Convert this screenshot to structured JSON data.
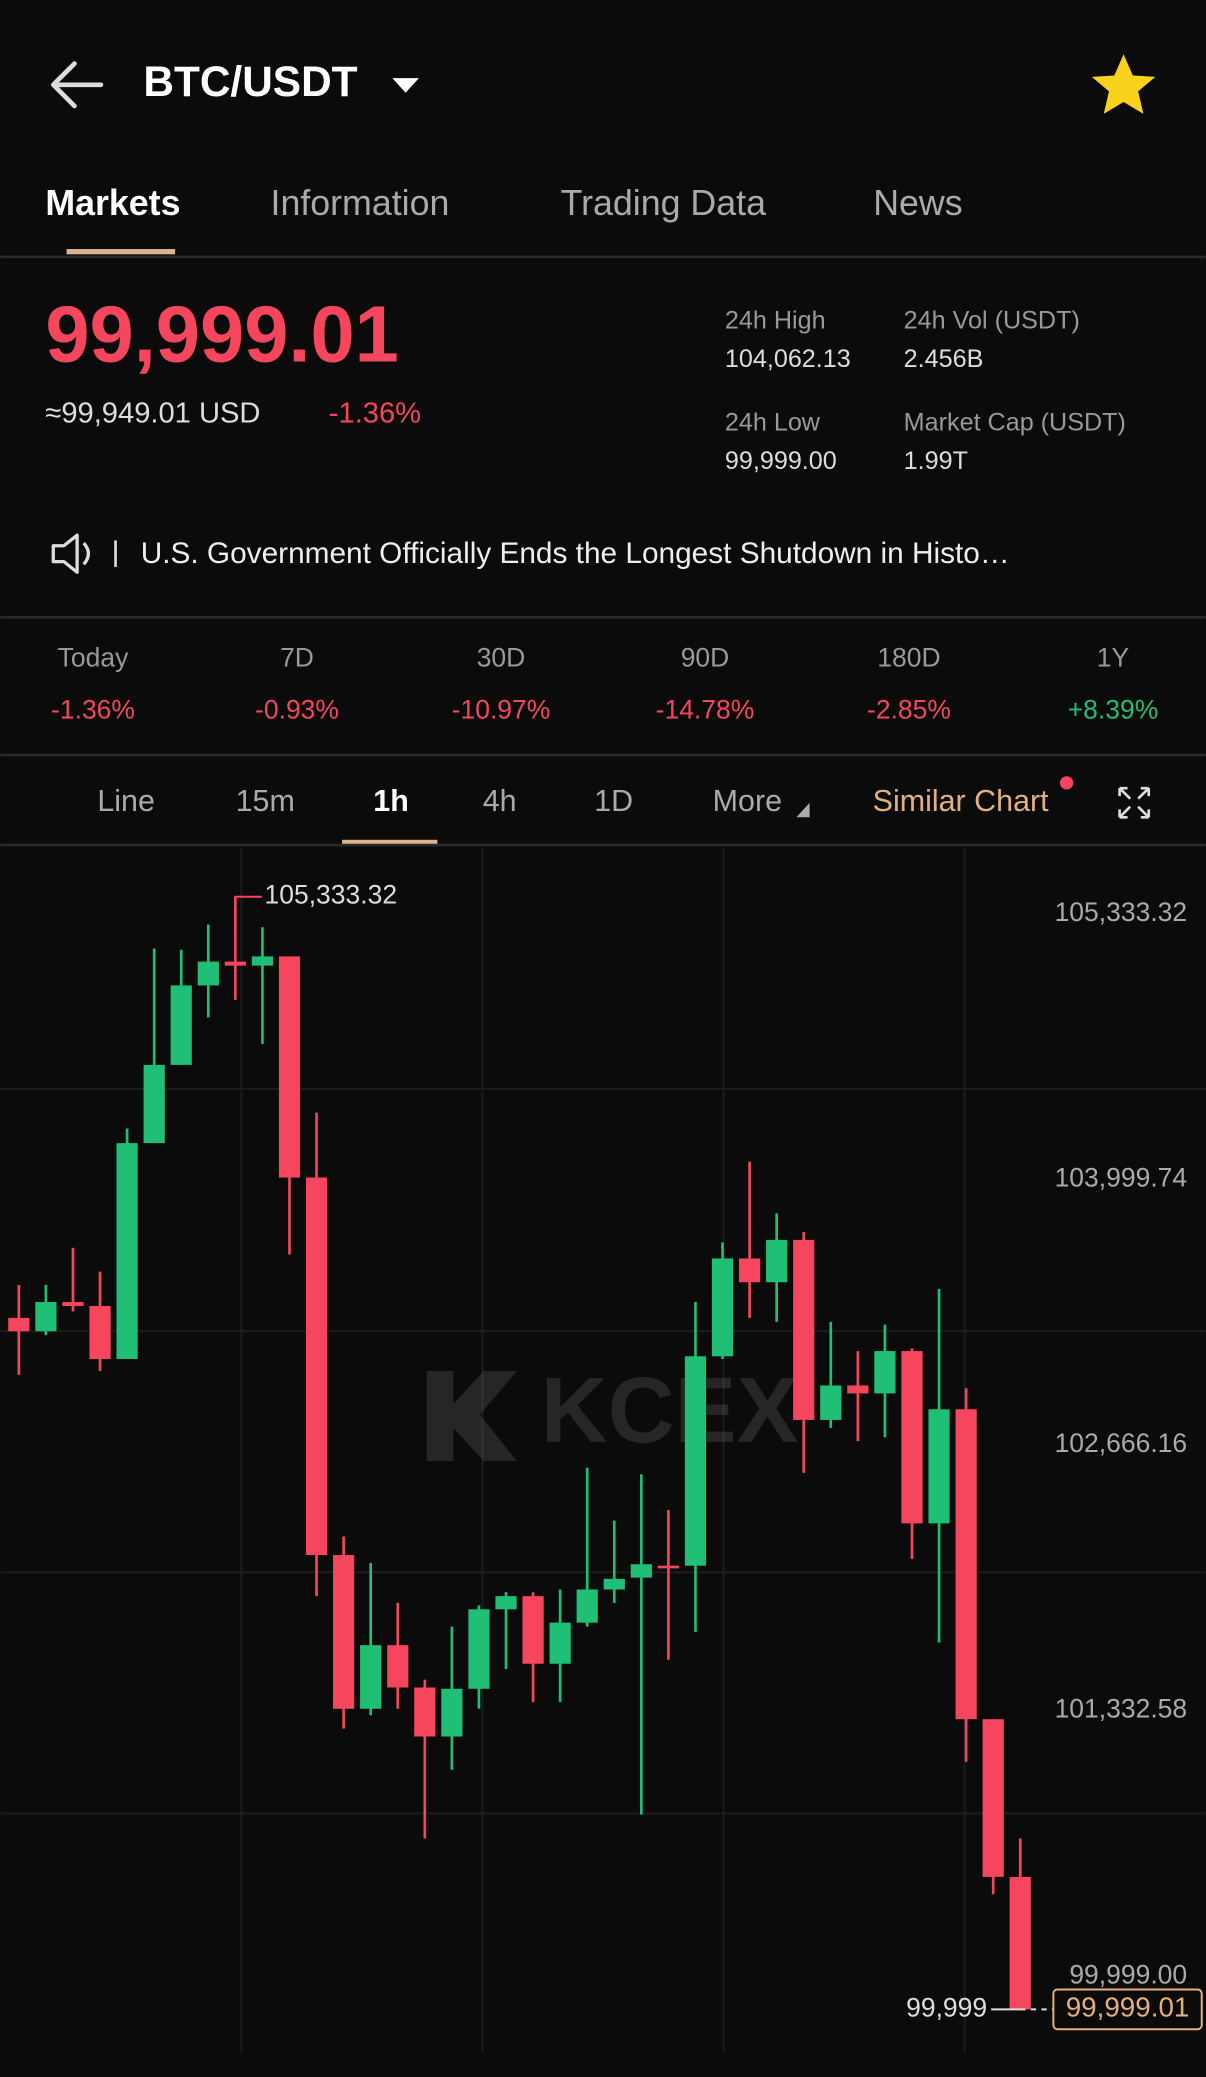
{
  "header": {
    "pair": "BTC/USDT"
  },
  "tabs": [
    "Markets",
    "Information",
    "Trading Data",
    "News"
  ],
  "price": {
    "last": "99,999.01",
    "usd": "≈99,949.01 USD",
    "change": "-1.36%"
  },
  "stats": [
    {
      "label": "24h High",
      "value": "104,062.13"
    },
    {
      "label": "24h Vol (USDT)",
      "value": "2.456B"
    },
    {
      "label": "24h Low",
      "value": "99,999.00"
    },
    {
      "label": "Market Cap (USDT)",
      "value": "1.99T"
    }
  ],
  "news": "U.S. Government Officially Ends the Longest Shutdown in Histo…",
  "performance": [
    {
      "label": "Today",
      "value": "-1.36%"
    },
    {
      "label": "7D",
      "value": "-0.93%"
    },
    {
      "label": "30D",
      "value": "-10.97%"
    },
    {
      "label": "90D",
      "value": "-14.78%"
    },
    {
      "label": "180D",
      "value": "-2.85%"
    },
    {
      "label": "1Y",
      "value": "+8.39%"
    }
  ],
  "intervals": [
    "Line",
    "15m",
    "1h",
    "4h",
    "1D",
    "More"
  ],
  "similar_chart": "Similar Chart",
  "chart_data": {
    "type": "candlestick",
    "open": [
      103314,
      103250,
      103390,
      103371,
      103117,
      104152,
      104527,
      104908,
      105022,
      105003,
      105047,
      103987,
      102177,
      101440,
      101745,
      101542,
      101307,
      101536,
      101917,
      101980,
      101656,
      101853,
      102012,
      102069,
      102126,
      102126,
      103130,
      103599,
      103485,
      103688,
      102825,
      102990,
      102952,
      103155,
      102329,
      102876,
      101390,
      100634
    ],
    "high": [
      103472,
      103472,
      103650,
      103536,
      104222,
      105085,
      105079,
      105200,
      105333.32,
      105187,
      105047,
      104298,
      102266,
      102139,
      101948,
      101580,
      101834,
      101936,
      101999,
      101999,
      102012,
      102596,
      102342,
      102564,
      102393,
      103390,
      103676,
      104063,
      103815,
      103726,
      103295,
      103155,
      103282,
      103168,
      103453,
      102977,
      101390,
      100818
    ],
    "low": [
      103041,
      103231,
      103345,
      103060,
      103117,
      104152,
      104527,
      104755,
      104838,
      104628,
      103618,
      101980,
      101345,
      101409,
      101440,
      100818,
      101148,
      101440,
      101631,
      101472,
      101472,
      101834,
      101948,
      100933,
      101675,
      101809,
      103117,
      103314,
      103295,
      102571,
      102787,
      102723,
      102742,
      102158,
      101758,
      101186,
      100551,
      99999.0
    ],
    "close": [
      103250,
      103390,
      103371,
      103117,
      104152,
      104527,
      104908,
      105022,
      105003,
      105047,
      103987,
      102177,
      101440,
      101745,
      101542,
      101307,
      101536,
      101917,
      101980,
      101656,
      101853,
      102012,
      102063,
      102133,
      102120,
      103130,
      103599,
      103485,
      103688,
      102825,
      102990,
      102952,
      103155,
      102329,
      102876,
      101390,
      100634,
      99999.01
    ],
    "up_color": "#1fbf76",
    "down_color": "#f6465d",
    "ylim": [
      99789,
      105568
    ],
    "yticks": [
      {
        "value": 105333.32,
        "label": "105,333.32"
      },
      {
        "value": 103999.74,
        "label": "103,999.74"
      },
      {
        "value": 102666.16,
        "label": "102,666.16"
      },
      {
        "value": 101332.58,
        "label": "101,332.58"
      },
      {
        "value": 99999.0,
        "label": "99,999.00"
      }
    ],
    "max_label": "105,333.32",
    "min_label": "99,999",
    "last_label": "99,999.01",
    "watermark": "KCEX"
  }
}
